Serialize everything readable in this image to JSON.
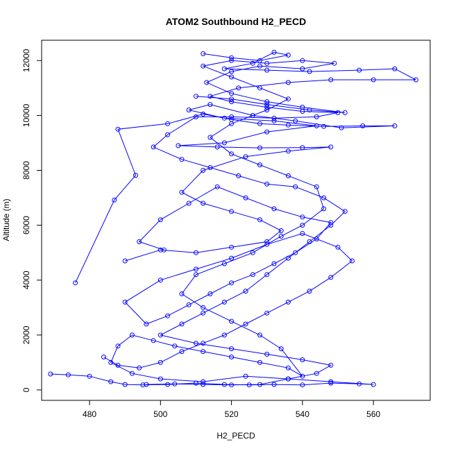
{
  "chart_data": {
    "type": "line",
    "title": "ATOM2 Southbound H2_PECD",
    "xlabel": "H2_PECD",
    "ylabel": "Altitude (m)",
    "xlim": [
      466.5,
      576.0
    ],
    "ylim": [
      -380,
      12740
    ],
    "x_ticks": [
      480,
      500,
      520,
      540,
      560
    ],
    "y_ticks": [
      0,
      2000,
      4000,
      6000,
      8000,
      10000,
      12000
    ],
    "grid": false,
    "legend": "none",
    "marker": "open-circle",
    "color": "#0000ff",
    "series": [
      {
        "values": [
          [
            476,
            3900
          ],
          [
            487,
            6920
          ],
          [
            493,
            7820
          ],
          [
            488,
            9500
          ],
          [
            502,
            9700
          ],
          [
            512,
            10050
          ],
          [
            520,
            9850
          ],
          [
            528,
            9700
          ],
          [
            536,
            9650
          ],
          [
            546,
            9600
          ],
          [
            557,
            9620
          ],
          [
            566,
            9620
          ],
          [
            551,
            9550
          ],
          [
            538,
            9800
          ],
          [
            526,
            10000
          ],
          [
            514,
            10400
          ],
          [
            508,
            10200
          ],
          [
            518,
            9900
          ],
          [
            532,
            9800
          ],
          [
            544,
            9620
          ],
          [
            530,
            9400
          ],
          [
            518,
            9000
          ],
          [
            505,
            8900
          ],
          [
            516,
            8850
          ],
          [
            528,
            8820
          ],
          [
            540,
            8830
          ],
          [
            548,
            8850
          ],
          [
            536,
            8700
          ],
          [
            524,
            8500
          ],
          [
            512,
            8000
          ],
          [
            506,
            7200
          ],
          [
            512,
            6800
          ],
          [
            520,
            6500
          ],
          [
            528,
            6200
          ],
          [
            534,
            5800
          ],
          [
            530,
            5400
          ],
          [
            520,
            5200
          ],
          [
            510,
            5000
          ],
          [
            500,
            5100
          ],
          [
            490,
            4700
          ]
        ]
      },
      {
        "values": [
          [
            469,
            580
          ],
          [
            474,
            550
          ],
          [
            480,
            500
          ],
          [
            486,
            300
          ],
          [
            490,
            200
          ],
          [
            495,
            180
          ],
          [
            502,
            200
          ],
          [
            510,
            250
          ],
          [
            518,
            200
          ],
          [
            525,
            180
          ],
          [
            532,
            200
          ],
          [
            540,
            180
          ],
          [
            548,
            250
          ],
          [
            556,
            220
          ],
          [
            560,
            200
          ],
          [
            548,
            300
          ],
          [
            536,
            400
          ],
          [
            524,
            500
          ],
          [
            512,
            300
          ],
          [
            500,
            400
          ],
          [
            492,
            600
          ],
          [
            486,
            1000
          ],
          [
            488,
            1600
          ],
          [
            492,
            2000
          ],
          [
            498,
            1800
          ],
          [
            504,
            1600
          ],
          [
            512,
            1400
          ],
          [
            520,
            1200
          ],
          [
            528,
            1000
          ],
          [
            536,
            800
          ],
          [
            540,
            500
          ],
          [
            534,
            1500
          ],
          [
            528,
            2000
          ],
          [
            520,
            2500
          ],
          [
            512,
            3000
          ],
          [
            506,
            3500
          ],
          [
            510,
            4200
          ],
          [
            518,
            4600
          ],
          [
            526,
            5000
          ],
          [
            534,
            5600
          ],
          [
            540,
            6000
          ],
          [
            546,
            6600
          ],
          [
            544,
            7400
          ],
          [
            536,
            7800
          ],
          [
            528,
            8200
          ],
          [
            520,
            8600
          ],
          [
            514,
            9200
          ],
          [
            520,
            9700
          ],
          [
            530,
            10200
          ],
          [
            536,
            10600
          ],
          [
            528,
            11000
          ],
          [
            520,
            11400
          ],
          [
            512,
            11800
          ],
          [
            520,
            12000
          ],
          [
            530,
            11900
          ],
          [
            540,
            12000
          ],
          [
            549,
            11900
          ],
          [
            540,
            11700
          ],
          [
            528,
            11800
          ],
          [
            520,
            11600
          ],
          [
            513,
            11200
          ],
          [
            520,
            10800
          ],
          [
            530,
            10500
          ],
          [
            540,
            10300
          ],
          [
            552,
            10100
          ],
          [
            542,
            10200
          ],
          [
            530,
            10400
          ],
          [
            520,
            10600
          ],
          [
            510,
            10700
          ]
        ]
      },
      {
        "values": [
          [
            512,
            12250
          ],
          [
            520,
            12100
          ],
          [
            528,
            12000
          ],
          [
            536,
            12200
          ],
          [
            532,
            12300
          ],
          [
            526,
            11900
          ],
          [
            518,
            11700
          ],
          [
            530,
            11650
          ],
          [
            542,
            11600
          ],
          [
            556,
            11650
          ],
          [
            566,
            11700
          ],
          [
            572,
            11300
          ],
          [
            560,
            11300
          ],
          [
            548,
            11300
          ],
          [
            536,
            11200
          ],
          [
            522,
            11000
          ],
          [
            514,
            10700
          ],
          [
            520,
            10500
          ],
          [
            530,
            10300
          ],
          [
            540,
            10150
          ],
          [
            550,
            10100
          ],
          [
            544,
            9950
          ],
          [
            532,
            9900
          ],
          [
            520,
            9950
          ],
          [
            510,
            9950
          ],
          [
            502,
            9300
          ],
          [
            498,
            8850
          ],
          [
            506,
            8400
          ],
          [
            514,
            8100
          ],
          [
            522,
            7800
          ],
          [
            530,
            7500
          ],
          [
            538,
            7400
          ],
          [
            546,
            7000
          ],
          [
            552,
            6500
          ],
          [
            548,
            6000
          ],
          [
            542,
            5400
          ],
          [
            536,
            4800
          ],
          [
            530,
            4200
          ],
          [
            524,
            3600
          ],
          [
            518,
            3200
          ],
          [
            512,
            2800
          ],
          [
            506,
            2400
          ],
          [
            500,
            2000
          ],
          [
            510,
            1700
          ],
          [
            520,
            1500
          ],
          [
            530,
            1300
          ],
          [
            540,
            1100
          ],
          [
            548,
            900
          ],
          [
            544,
            600
          ],
          [
            536,
            400
          ],
          [
            528,
            200
          ],
          [
            520,
            180
          ],
          [
            512,
            200
          ],
          [
            504,
            220
          ],
          [
            496,
            200
          ]
        ]
      },
      {
        "values": [
          [
            501,
            5100
          ],
          [
            494,
            5400
          ],
          [
            500,
            6200
          ],
          [
            508,
            6800
          ],
          [
            516,
            7400
          ],
          [
            524,
            7000
          ],
          [
            532,
            6600
          ],
          [
            540,
            6300
          ],
          [
            548,
            6100
          ],
          [
            544,
            5500
          ],
          [
            538,
            5000
          ],
          [
            532,
            4600
          ],
          [
            526,
            4200
          ],
          [
            520,
            3900
          ],
          [
            514,
            3500
          ],
          [
            508,
            3100
          ],
          [
            502,
            2700
          ],
          [
            496,
            2400
          ],
          [
            490,
            3200
          ],
          [
            500,
            4000
          ],
          [
            510,
            4400
          ],
          [
            520,
            4800
          ],
          [
            530,
            5300
          ],
          [
            540,
            5700
          ],
          [
            550,
            5200
          ],
          [
            554,
            4700
          ],
          [
            548,
            4100
          ],
          [
            542,
            3600
          ],
          [
            536,
            3200
          ],
          [
            530,
            2800
          ],
          [
            524,
            2400
          ],
          [
            518,
            2000
          ],
          [
            512,
            1700
          ],
          [
            506,
            1400
          ],
          [
            500,
            1000
          ],
          [
            494,
            800
          ],
          [
            488,
            900
          ],
          [
            484,
            1200
          ]
        ]
      }
    ]
  }
}
